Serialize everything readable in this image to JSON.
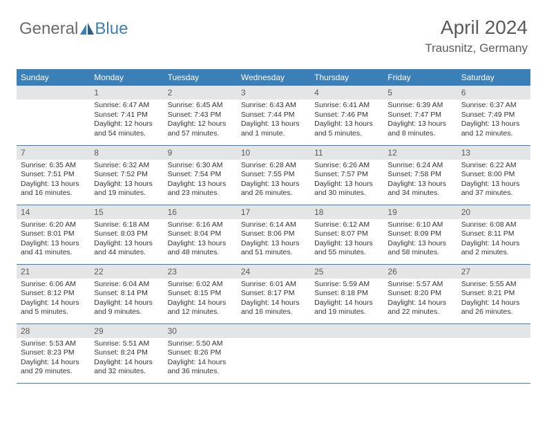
{
  "logo": {
    "general": "General",
    "blue": "Blue"
  },
  "header": {
    "title": "April 2024",
    "location": "Trausnitz, Germany"
  },
  "colors": {
    "header_bg": "#3a7fb8",
    "header_text": "#ffffff",
    "daynum_bg": "#e4e5e6",
    "daynum_text": "#5a5a5a",
    "body_text": "#333333",
    "border": "#3a7fb8",
    "logo_gray": "#6b6b6b",
    "logo_blue": "#3a7fb8"
  },
  "weekdays": [
    "Sunday",
    "Monday",
    "Tuesday",
    "Wednesday",
    "Thursday",
    "Friday",
    "Saturday"
  ],
  "start_offset": 1,
  "days": [
    {
      "n": "1",
      "sunrise": "6:47 AM",
      "sunset": "7:41 PM",
      "daylight": "12 hours and 54 minutes."
    },
    {
      "n": "2",
      "sunrise": "6:45 AM",
      "sunset": "7:43 PM",
      "daylight": "12 hours and 57 minutes."
    },
    {
      "n": "3",
      "sunrise": "6:43 AM",
      "sunset": "7:44 PM",
      "daylight": "13 hours and 1 minute."
    },
    {
      "n": "4",
      "sunrise": "6:41 AM",
      "sunset": "7:46 PM",
      "daylight": "13 hours and 5 minutes."
    },
    {
      "n": "5",
      "sunrise": "6:39 AM",
      "sunset": "7:47 PM",
      "daylight": "13 hours and 8 minutes."
    },
    {
      "n": "6",
      "sunrise": "6:37 AM",
      "sunset": "7:49 PM",
      "daylight": "13 hours and 12 minutes."
    },
    {
      "n": "7",
      "sunrise": "6:35 AM",
      "sunset": "7:51 PM",
      "daylight": "13 hours and 16 minutes."
    },
    {
      "n": "8",
      "sunrise": "6:32 AM",
      "sunset": "7:52 PM",
      "daylight": "13 hours and 19 minutes."
    },
    {
      "n": "9",
      "sunrise": "6:30 AM",
      "sunset": "7:54 PM",
      "daylight": "13 hours and 23 minutes."
    },
    {
      "n": "10",
      "sunrise": "6:28 AM",
      "sunset": "7:55 PM",
      "daylight": "13 hours and 26 minutes."
    },
    {
      "n": "11",
      "sunrise": "6:26 AM",
      "sunset": "7:57 PM",
      "daylight": "13 hours and 30 minutes."
    },
    {
      "n": "12",
      "sunrise": "6:24 AM",
      "sunset": "7:58 PM",
      "daylight": "13 hours and 34 minutes."
    },
    {
      "n": "13",
      "sunrise": "6:22 AM",
      "sunset": "8:00 PM",
      "daylight": "13 hours and 37 minutes."
    },
    {
      "n": "14",
      "sunrise": "6:20 AM",
      "sunset": "8:01 PM",
      "daylight": "13 hours and 41 minutes."
    },
    {
      "n": "15",
      "sunrise": "6:18 AM",
      "sunset": "8:03 PM",
      "daylight": "13 hours and 44 minutes."
    },
    {
      "n": "16",
      "sunrise": "6:16 AM",
      "sunset": "8:04 PM",
      "daylight": "13 hours and 48 minutes."
    },
    {
      "n": "17",
      "sunrise": "6:14 AM",
      "sunset": "8:06 PM",
      "daylight": "13 hours and 51 minutes."
    },
    {
      "n": "18",
      "sunrise": "6:12 AM",
      "sunset": "8:07 PM",
      "daylight": "13 hours and 55 minutes."
    },
    {
      "n": "19",
      "sunrise": "6:10 AM",
      "sunset": "8:09 PM",
      "daylight": "13 hours and 58 minutes."
    },
    {
      "n": "20",
      "sunrise": "6:08 AM",
      "sunset": "8:11 PM",
      "daylight": "14 hours and 2 minutes."
    },
    {
      "n": "21",
      "sunrise": "6:06 AM",
      "sunset": "8:12 PM",
      "daylight": "14 hours and 5 minutes."
    },
    {
      "n": "22",
      "sunrise": "6:04 AM",
      "sunset": "8:14 PM",
      "daylight": "14 hours and 9 minutes."
    },
    {
      "n": "23",
      "sunrise": "6:02 AM",
      "sunset": "8:15 PM",
      "daylight": "14 hours and 12 minutes."
    },
    {
      "n": "24",
      "sunrise": "6:01 AM",
      "sunset": "8:17 PM",
      "daylight": "14 hours and 16 minutes."
    },
    {
      "n": "25",
      "sunrise": "5:59 AM",
      "sunset": "8:18 PM",
      "daylight": "14 hours and 19 minutes."
    },
    {
      "n": "26",
      "sunrise": "5:57 AM",
      "sunset": "8:20 PM",
      "daylight": "14 hours and 22 minutes."
    },
    {
      "n": "27",
      "sunrise": "5:55 AM",
      "sunset": "8:21 PM",
      "daylight": "14 hours and 26 minutes."
    },
    {
      "n": "28",
      "sunrise": "5:53 AM",
      "sunset": "8:23 PM",
      "daylight": "14 hours and 29 minutes."
    },
    {
      "n": "29",
      "sunrise": "5:51 AM",
      "sunset": "8:24 PM",
      "daylight": "14 hours and 32 minutes."
    },
    {
      "n": "30",
      "sunrise": "5:50 AM",
      "sunset": "8:26 PM",
      "daylight": "14 hours and 36 minutes."
    }
  ],
  "labels": {
    "sunrise": "Sunrise:",
    "sunset": "Sunset:",
    "daylight": "Daylight:"
  }
}
